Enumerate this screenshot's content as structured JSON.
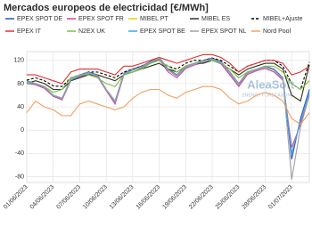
{
  "chart_data": {
    "type": "line",
    "title": "Mercados europeos de electricidad [€/MWh]",
    "watermark": "AleaSoft",
    "watermark_sub": "ENERGY FORECASTING",
    "x": [
      "01/06/2023",
      "02/06/2023",
      "03/06/2023",
      "04/06/2023",
      "05/06/2023",
      "06/06/2023",
      "07/06/2023",
      "08/06/2023",
      "09/06/2023",
      "10/06/2023",
      "11/06/2023",
      "12/06/2023",
      "13/06/2023",
      "14/06/2023",
      "15/06/2023",
      "16/06/2023",
      "17/06/2023",
      "18/06/2023",
      "19/06/2023",
      "20/06/2023",
      "21/06/2023",
      "22/06/2023",
      "23/06/2023",
      "24/06/2023",
      "25/06/2023",
      "26/06/2023",
      "27/06/2023",
      "28/06/2023",
      "29/06/2023",
      "30/06/2023",
      "01/07/2023",
      "02/07/2023",
      "03/07/2023"
    ],
    "xticks": [
      "01/06/2023",
      "04/06/2023",
      "07/06/2023",
      "10/06/2023",
      "13/06/2023",
      "16/06/2023",
      "19/06/2023",
      "22/06/2023",
      "25/06/2023",
      "28/06/2023",
      "01/07/2023"
    ],
    "ylim": [
      -90,
      135
    ],
    "yticks": [
      -80,
      -40,
      0,
      40,
      80,
      120
    ],
    "grid": true,
    "series": [
      {
        "name": "EPEX SPOT DE",
        "color": "#2a52be",
        "values": [
          85,
          80,
          75,
          60,
          55,
          88,
          95,
          100,
          95,
          70,
          50,
          98,
          105,
          110,
          118,
          125,
          105,
          95,
          110,
          115,
          120,
          124,
          118,
          100,
          80,
          100,
          105,
          110,
          105,
          90,
          -50,
          20,
          70
        ]
      },
      {
        "name": "EPEX SPOT FR",
        "color": "#e0408a",
        "values": [
          80,
          78,
          72,
          58,
          52,
          85,
          92,
          96,
          92,
          68,
          45,
          95,
          100,
          106,
          115,
          122,
          100,
          90,
          106,
          112,
          116,
          120,
          114,
          95,
          75,
          96,
          102,
          106,
          100,
          86,
          -30,
          10,
          60
        ]
      },
      {
        "name": "MIBEL PT",
        "color": "#d8d800",
        "values": [
          80,
          85,
          80,
          70,
          70,
          85,
          90,
          95,
          95,
          90,
          85,
          95,
          100,
          105,
          110,
          115,
          105,
          100,
          110,
          115,
          115,
          120,
          115,
          105,
          95,
          105,
          110,
          115,
          115,
          105,
          60,
          50,
          112
        ]
      },
      {
        "name": "MIBEL ES",
        "color": "#333333",
        "values": [
          80,
          85,
          80,
          70,
          70,
          85,
          90,
          95,
          95,
          90,
          85,
          95,
          100,
          105,
          110,
          115,
          105,
          100,
          110,
          115,
          115,
          120,
          115,
          105,
          95,
          105,
          110,
          115,
          115,
          105,
          60,
          50,
          112
        ]
      },
      {
        "name": "MIBEL+Ajuste",
        "color": "#000000",
        "dash": true,
        "values": [
          86,
          90,
          85,
          76,
          75,
          90,
          95,
          100,
          100,
          95,
          90,
          100,
          105,
          110,
          115,
          120,
          110,
          105,
          115,
          120,
          120,
          124,
          120,
          110,
          100,
          110,
          115,
          120,
          120,
          110,
          80,
          70,
          117
        ]
      },
      {
        "name": "EPEX IT",
        "color": "#e03030",
        "values": [
          95,
          95,
          90,
          85,
          80,
          100,
          105,
          105,
          105,
          100,
          95,
          110,
          110,
          115,
          120,
          125,
          120,
          115,
          120,
          125,
          130,
          130,
          125,
          115,
          100,
          110,
          115,
          120,
          120,
          115,
          95,
          100,
          110
        ]
      },
      {
        "name": "N2EX UK",
        "color": "#7cc043",
        "values": [
          80,
          80,
          75,
          65,
          70,
          90,
          95,
          95,
          90,
          80,
          75,
          95,
          100,
          105,
          115,
          120,
          110,
          100,
          110,
          115,
          120,
          120,
          115,
          105,
          90,
          100,
          105,
          110,
          110,
          100,
          80,
          70,
          85
        ]
      },
      {
        "name": "EPEX SPOT BE",
        "color": "#3fa8e0",
        "values": [
          82,
          79,
          74,
          59,
          54,
          86,
          93,
          98,
          93,
          69,
          48,
          96,
          103,
          108,
          116,
          123,
          103,
          93,
          108,
          114,
          118,
          122,
          116,
          98,
          78,
          98,
          104,
          108,
          103,
          88,
          -40,
          15,
          65
        ]
      },
      {
        "name": "EPEX SPOT NL",
        "color": "#a0a0a0",
        "values": [
          84,
          80,
          75,
          60,
          55,
          88,
          95,
          99,
          94,
          70,
          50,
          97,
          104,
          109,
          117,
          124,
          104,
          94,
          109,
          115,
          119,
          123,
          117,
          99,
          79,
          99,
          105,
          109,
          104,
          89,
          -85,
          5,
          60
        ]
      },
      {
        "name": "Nord Pool",
        "color": "#f0a060",
        "values": [
          30,
          50,
          40,
          35,
          25,
          25,
          45,
          50,
          45,
          40,
          35,
          40,
          55,
          65,
          70,
          70,
          60,
          55,
          65,
          70,
          75,
          75,
          70,
          55,
          45,
          50,
          60,
          65,
          60,
          50,
          20,
          10,
          30
        ]
      }
    ]
  }
}
